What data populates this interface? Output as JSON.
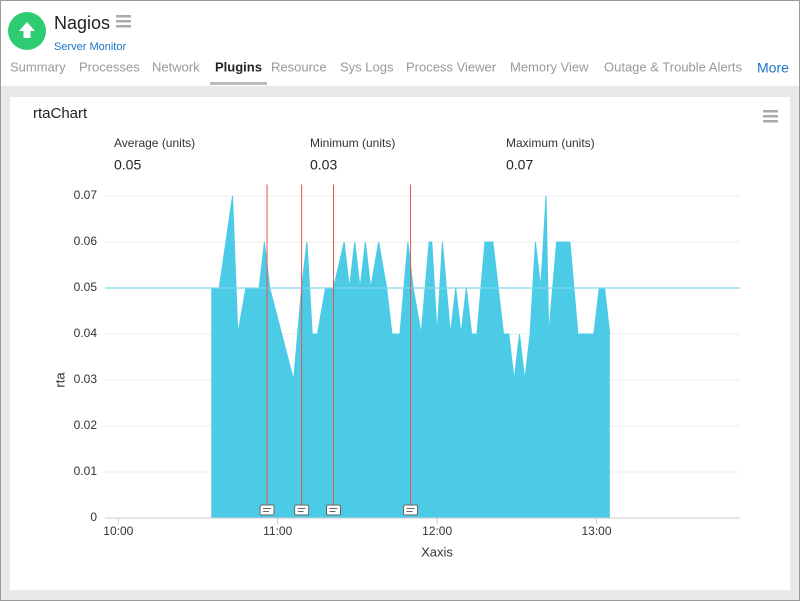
{
  "header": {
    "app_name": "Nagios",
    "subtitle": "Server Monitor",
    "tabs": [
      "Summary",
      "Processes",
      "Network",
      "Plugins",
      "Resource",
      "Sys Logs",
      "Process Viewer",
      "Memory View",
      "Outage & Trouble Alerts"
    ],
    "active_tab": 3,
    "more": "More"
  },
  "card": {
    "title": "rtaChart",
    "stats": [
      {
        "label": "Average (units)",
        "value": 0.05
      },
      {
        "label": "Minimum (units)",
        "value": 0.03
      },
      {
        "label": "Maximum (units)",
        "value": 0.07
      }
    ]
  },
  "chart_data": {
    "type": "area",
    "y_label": "rta",
    "x_label": "Xaxis",
    "color": "#4ccbe6",
    "series": [
      {
        "name": "rta",
        "color": "#4ccbe6",
        "x": [
          635,
          638,
          643,
          645,
          648,
          653,
          655,
          657,
          666,
          669,
          671,
          673,
          675,
          678,
          681,
          685,
          687,
          689,
          691,
          693,
          695,
          698,
          701,
          703,
          706,
          709,
          711,
          714,
          717,
          718,
          720,
          722,
          725,
          727,
          729,
          731,
          733,
          735,
          738,
          741,
          745,
          747,
          749,
          751,
          753,
          755,
          757,
          759,
          761,
          762,
          765,
          770,
          773,
          779,
          781,
          783,
          785
        ],
        "values": [
          0.05,
          0.05,
          0.07,
          0.04,
          0.05,
          0.05,
          0.06,
          0.05,
          0.03,
          0.05,
          0.06,
          0.04,
          0.04,
          0.05,
          0.05,
          0.06,
          0.05,
          0.06,
          0.05,
          0.06,
          0.05,
          0.06,
          0.05,
          0.04,
          0.04,
          0.06,
          0.05,
          0.04,
          0.06,
          0.06,
          0.04,
          0.06,
          0.04,
          0.05,
          0.04,
          0.05,
          0.04,
          0.04,
          0.06,
          0.06,
          0.04,
          0.04,
          0.03,
          0.04,
          0.03,
          0.04,
          0.06,
          0.05,
          0.07,
          0.04,
          0.06,
          0.06,
          0.04,
          0.04,
          0.05,
          0.05,
          0.04
        ]
      }
    ],
    "events": [
      656,
      669,
      681,
      710
    ],
    "xlim": [
      595,
      834
    ],
    "ylim": [
      0,
      0.0725
    ],
    "xticks": [
      {
        "value": 600,
        "label": "10:00"
      },
      {
        "value": 660,
        "label": "11:00"
      },
      {
        "value": 720,
        "label": "12:00"
      },
      {
        "value": 780,
        "label": "13:00"
      }
    ],
    "yticks": [
      0,
      0.01,
      0.02,
      0.03,
      0.04,
      0.05,
      0.06,
      0.07
    ],
    "grid": true
  }
}
